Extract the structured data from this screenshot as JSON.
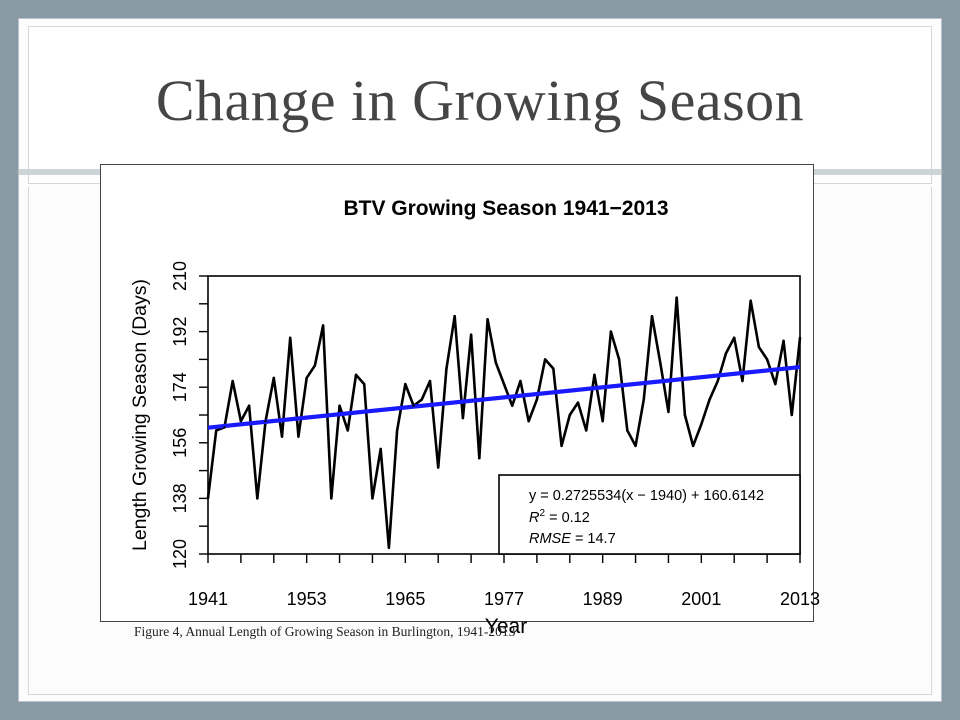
{
  "slide": {
    "title": "Change in Growing Season",
    "caption": "Figure 4, Annual Length of Growing Season in Burlington, 1941-2013"
  },
  "chart_data": {
    "type": "line",
    "title": "BTV Growing Season 1941−2013",
    "xlabel": "Year",
    "ylabel": "Length Growing Season  (Days)",
    "xlim": [
      1941,
      2013
    ],
    "ylim": [
      120,
      210
    ],
    "xticks": [
      1941,
      1953,
      1965,
      1977,
      1989,
      2001,
      2013
    ],
    "yticks": [
      120,
      138,
      156,
      174,
      192,
      210
    ],
    "grid": false,
    "line_color": "#000000",
    "trend_color": "#1a1aff",
    "x": [
      1941,
      1942,
      1943,
      1944,
      1945,
      1946,
      1947,
      1948,
      1949,
      1950,
      1951,
      1952,
      1953,
      1954,
      1955,
      1956,
      1957,
      1958,
      1959,
      1960,
      1961,
      1962,
      1963,
      1964,
      1965,
      1966,
      1967,
      1968,
      1969,
      1970,
      1971,
      1972,
      1973,
      1974,
      1975,
      1976,
      1977,
      1978,
      1979,
      1980,
      1981,
      1982,
      1983,
      1984,
      1985,
      1986,
      1987,
      1988,
      1989,
      1990,
      1991,
      1992,
      1993,
      1994,
      1995,
      1996,
      1997,
      1998,
      1999,
      2000,
      2001,
      2002,
      2003,
      2004,
      2005,
      2006,
      2007,
      2008,
      2009,
      2010,
      2011,
      2012,
      2013
    ],
    "series": [
      {
        "values": [
          138,
          160,
          161,
          176,
          163,
          168,
          138,
          163,
          177,
          158,
          190,
          158,
          177,
          181,
          194,
          138,
          168,
          160,
          178,
          175,
          138,
          154,
          122,
          160,
          175,
          168,
          170,
          176,
          148,
          180,
          197,
          164,
          191,
          151,
          196,
          182,
          175,
          168,
          176,
          163,
          170,
          183,
          180,
          155,
          165,
          169,
          160,
          178,
          163,
          192,
          183,
          160,
          155,
          170,
          197,
          182,
          166,
          203,
          165,
          155,
          162,
          170,
          176,
          185,
          190,
          176,
          202,
          187,
          183,
          175,
          189,
          165,
          190
        ]
      }
    ],
    "trendline": {
      "type": "linear",
      "slope": 0.2725534,
      "x0": 1940,
      "intercept": 160.6142,
      "annotation": {
        "equation": "y = 0.2725534(x − 1940) + 160.6142",
        "r2_label": "R",
        "r2_value": "= 0.12",
        "rmse_label": "RMSE",
        "rmse_value": "= 14.7"
      }
    }
  }
}
